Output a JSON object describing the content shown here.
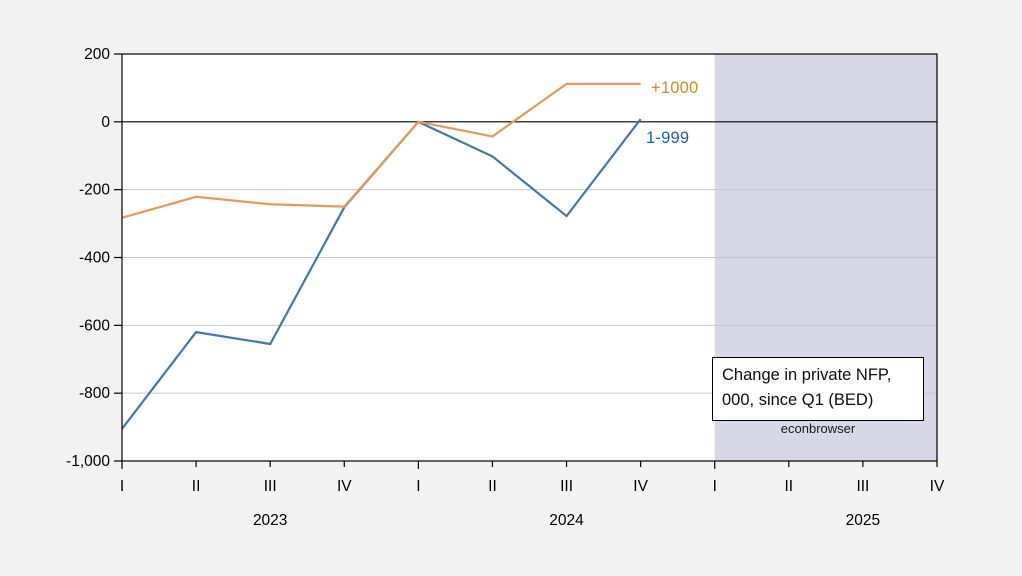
{
  "chart_data": {
    "type": "line",
    "x_tick_labels": [
      "I",
      "II",
      "III",
      "IV",
      "I",
      "II",
      "III",
      "IV",
      "I",
      "II",
      "III",
      "IV"
    ],
    "year_labels": [
      "2023",
      "2024",
      "2025"
    ],
    "y_ticks": [
      200,
      0,
      -200,
      -400,
      -600,
      -800,
      -1000
    ],
    "y_tick_labels": [
      "200",
      "0",
      "-200",
      "-400",
      "-600",
      "-800",
      "-1,000"
    ],
    "ylim": [
      -1000,
      200
    ],
    "grid": true,
    "zero_line": true,
    "shaded_region": {
      "start_category_index": 8,
      "end_category_index": 11,
      "color": "#d7d7e7"
    },
    "series": [
      {
        "name": "+1000",
        "line_color": "#e09a5a",
        "label_color": "#d4881e",
        "x_indices": [
          0,
          1,
          2,
          3,
          4,
          5,
          6,
          7
        ],
        "values": [
          -283,
          -221,
          -243,
          -250,
          0,
          -43,
          112,
          112
        ]
      },
      {
        "name": "1-999",
        "line_color": "#4377ab",
        "label_color": "#1e5ea8",
        "x_indices": [
          0,
          1,
          2,
          3,
          4,
          5,
          6,
          7
        ],
        "values": [
          -905,
          -620,
          -655,
          -252,
          0,
          -102,
          -278,
          8
        ]
      }
    ],
    "colors": {
      "background": "#f2f2f2",
      "plot_background": "#ffffff",
      "gridline": "#c8c8c8",
      "frame": "#000000",
      "axis_text": "#000000"
    }
  },
  "annotation": {
    "line1": "Change in private NFP,",
    "line2": "000, since Q1 (BED)"
  },
  "watermark": "econbrowser"
}
